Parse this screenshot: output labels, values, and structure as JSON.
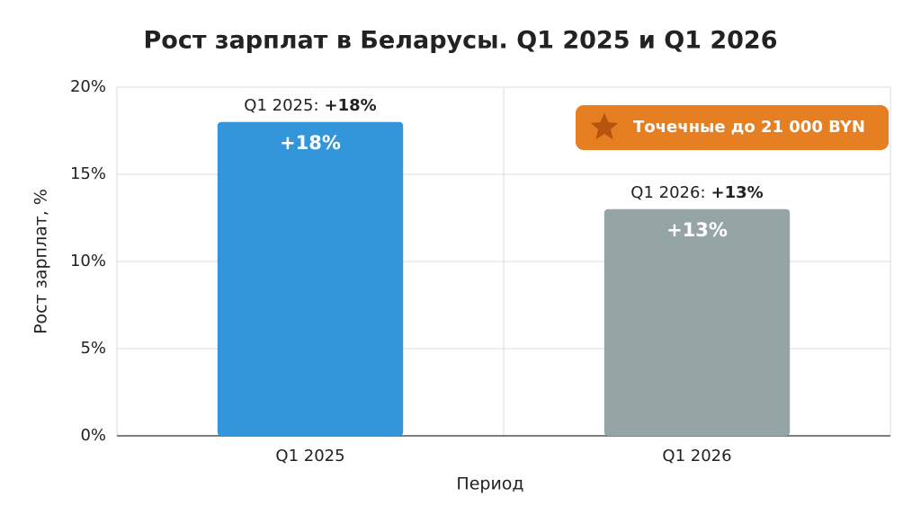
{
  "chart_data": {
    "type": "bar",
    "title": "Рост зарплат в Беларусы. Q1 2025 и Q1 2026",
    "x_label": "Период",
    "y_label": "Рост зарплат, %",
    "categories": [
      "Q1 2025",
      "Q1 2026"
    ],
    "values": [
      18,
      13
    ],
    "value_labels": [
      "+18%",
      "+13%"
    ],
    "colors": [
      "#3396db",
      "#95a5a6"
    ],
    "bar_annotations": [
      [
        "Q1 2025:",
        "+18%"
      ],
      [
        "Q1 2026:",
        "+13%"
      ]
    ],
    "badge": "Точечные до 21 000 BYN",
    "ylim": [
      0,
      20
    ],
    "yticks": [
      {
        "value": 0,
        "label": "0%"
      },
      {
        "value": 5,
        "label": "5%"
      },
      {
        "value": 10,
        "label": "10%"
      },
      {
        "value": 15,
        "label": "15%"
      },
      {
        "value": 20,
        "label": "20%"
      }
    ],
    "grid": true
  }
}
